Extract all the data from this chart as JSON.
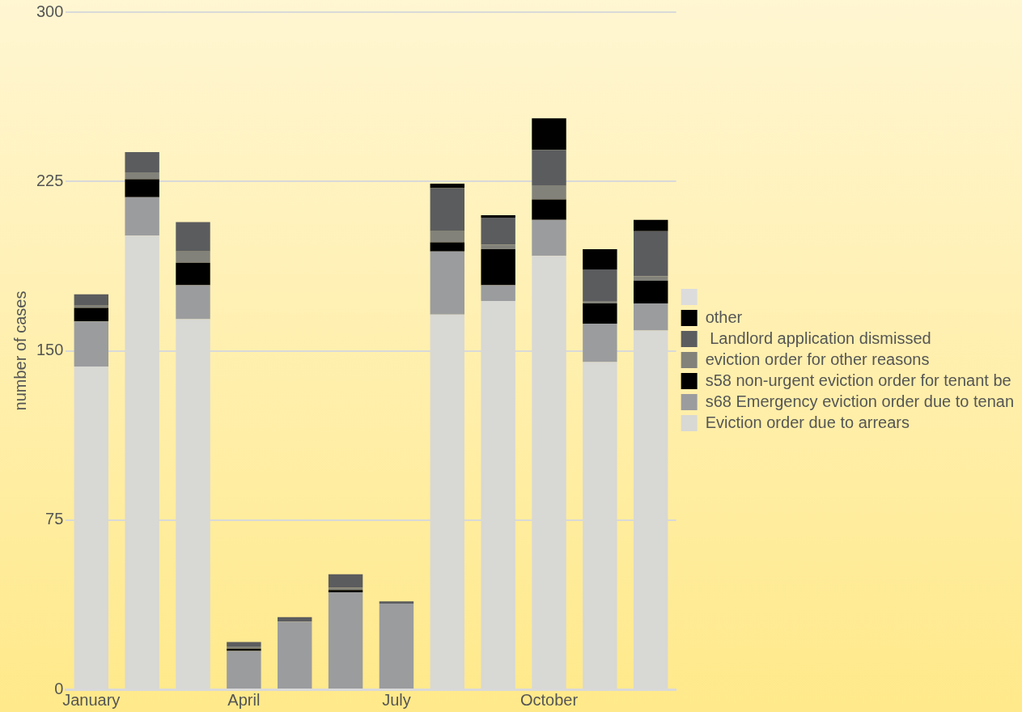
{
  "chart_data": {
    "type": "bar",
    "stacked": true,
    "ylabel": "number of cases",
    "categories": [
      "January",
      null,
      null,
      "April",
      null,
      null,
      "July",
      null,
      null,
      "October",
      null,
      null
    ],
    "series": [
      {
        "name": "Eviction order due to arrears",
        "color": "#d8d8d4",
        "values": [
          143,
          201,
          164,
          0,
          0,
          0,
          0,
          166,
          172,
          192,
          145,
          159
        ]
      },
      {
        "name": "s68 Emergency eviction order due to tenan",
        "color": "#9b9c9e",
        "values": [
          20,
          17,
          15,
          17,
          30,
          43,
          38,
          28,
          7,
          16,
          17,
          12
        ]
      },
      {
        "name": "s58 non-urgent eviction order for tenant be",
        "color": "#000000",
        "values": [
          6,
          8,
          10,
          1,
          0,
          1,
          0,
          4,
          16,
          9,
          9,
          10
        ]
      },
      {
        "name": "eviction order for other reasons",
        "color": "#82827a",
        "values": [
          1,
          3,
          5,
          1,
          0,
          1,
          0,
          5,
          2,
          6,
          1,
          2
        ]
      },
      {
        "name": " Landlord application dismissed",
        "color": "#5b5c5e",
        "values": [
          5,
          9,
          13,
          2,
          2,
          6,
          1,
          19,
          12,
          16,
          14,
          20
        ]
      },
      {
        "name": "other",
        "color": "#010101",
        "values": [
          0,
          0,
          0,
          0,
          0,
          0,
          0,
          2,
          1,
          14,
          9,
          5
        ]
      },
      {
        "color": "#dcdcdc",
        "values": [
          0,
          0,
          0,
          0,
          0,
          0,
          0,
          0,
          0,
          0,
          0,
          0
        ]
      }
    ],
    "ylim": [
      0,
      300
    ],
    "yticks": [
      0,
      75,
      150,
      225,
      300
    ],
    "grid": "y",
    "legend": "right"
  }
}
